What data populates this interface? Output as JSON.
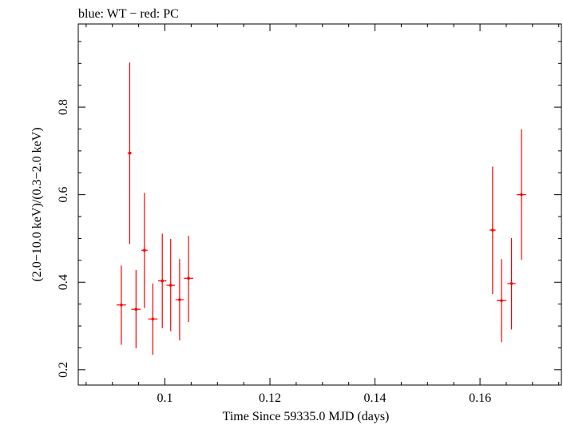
{
  "chart_data": {
    "type": "scatter",
    "title": "blue: WT − red: PC",
    "xlabel": "Time Since 59335.0 MJD (days)",
    "ylabel": "(2.0−10.0 keV)/(0.3−2.0 keV)",
    "xlim": [
      0.0835,
      0.1755
    ],
    "ylim": [
      0.165,
      0.99
    ],
    "xticks": [
      0.1,
      0.12,
      0.14,
      0.16
    ],
    "xtick_labels": [
      "0.1",
      "0.12",
      "0.14",
      "0.16"
    ],
    "yticks": [
      0.2,
      0.4,
      0.6,
      0.8
    ],
    "ytick_labels": [
      "0.2",
      "0.4",
      "0.6",
      "0.8"
    ],
    "grid": false,
    "series": [
      {
        "name": "PC",
        "color": "#ff0000",
        "points": [
          {
            "x": 0.0917,
            "xerr": 0.0009,
            "y": 0.348,
            "ylo": 0.257,
            "yhi": 0.438
          },
          {
            "x": 0.0933,
            "xerr": 0.0004,
            "y": 0.695,
            "ylo": 0.487,
            "yhi": 0.902
          },
          {
            "x": 0.0945,
            "xerr": 0.0009,
            "y": 0.338,
            "ylo": 0.249,
            "yhi": 0.428
          },
          {
            "x": 0.0961,
            "xerr": 0.0006,
            "y": 0.473,
            "ylo": 0.341,
            "yhi": 0.604
          },
          {
            "x": 0.0977,
            "xerr": 0.0009,
            "y": 0.316,
            "ylo": 0.234,
            "yhi": 0.397
          },
          {
            "x": 0.0995,
            "xerr": 0.0008,
            "y": 0.403,
            "ylo": 0.295,
            "yhi": 0.511
          },
          {
            "x": 0.1011,
            "xerr": 0.0008,
            "y": 0.393,
            "ylo": 0.288,
            "yhi": 0.499
          },
          {
            "x": 0.1028,
            "xerr": 0.0008,
            "y": 0.36,
            "ylo": 0.267,
            "yhi": 0.453
          },
          {
            "x": 0.1045,
            "xerr": 0.0009,
            "y": 0.409,
            "ylo": 0.309,
            "yhi": 0.506
          },
          {
            "x": 0.1624,
            "xerr": 0.0006,
            "y": 0.519,
            "ylo": 0.373,
            "yhi": 0.664
          },
          {
            "x": 0.1641,
            "xerr": 0.0009,
            "y": 0.358,
            "ylo": 0.263,
            "yhi": 0.453
          },
          {
            "x": 0.166,
            "xerr": 0.0008,
            "y": 0.397,
            "ylo": 0.292,
            "yhi": 0.501
          },
          {
            "x": 0.1679,
            "xerr": 0.0009,
            "y": 0.6,
            "ylo": 0.451,
            "yhi": 0.749
          }
        ]
      }
    ]
  }
}
